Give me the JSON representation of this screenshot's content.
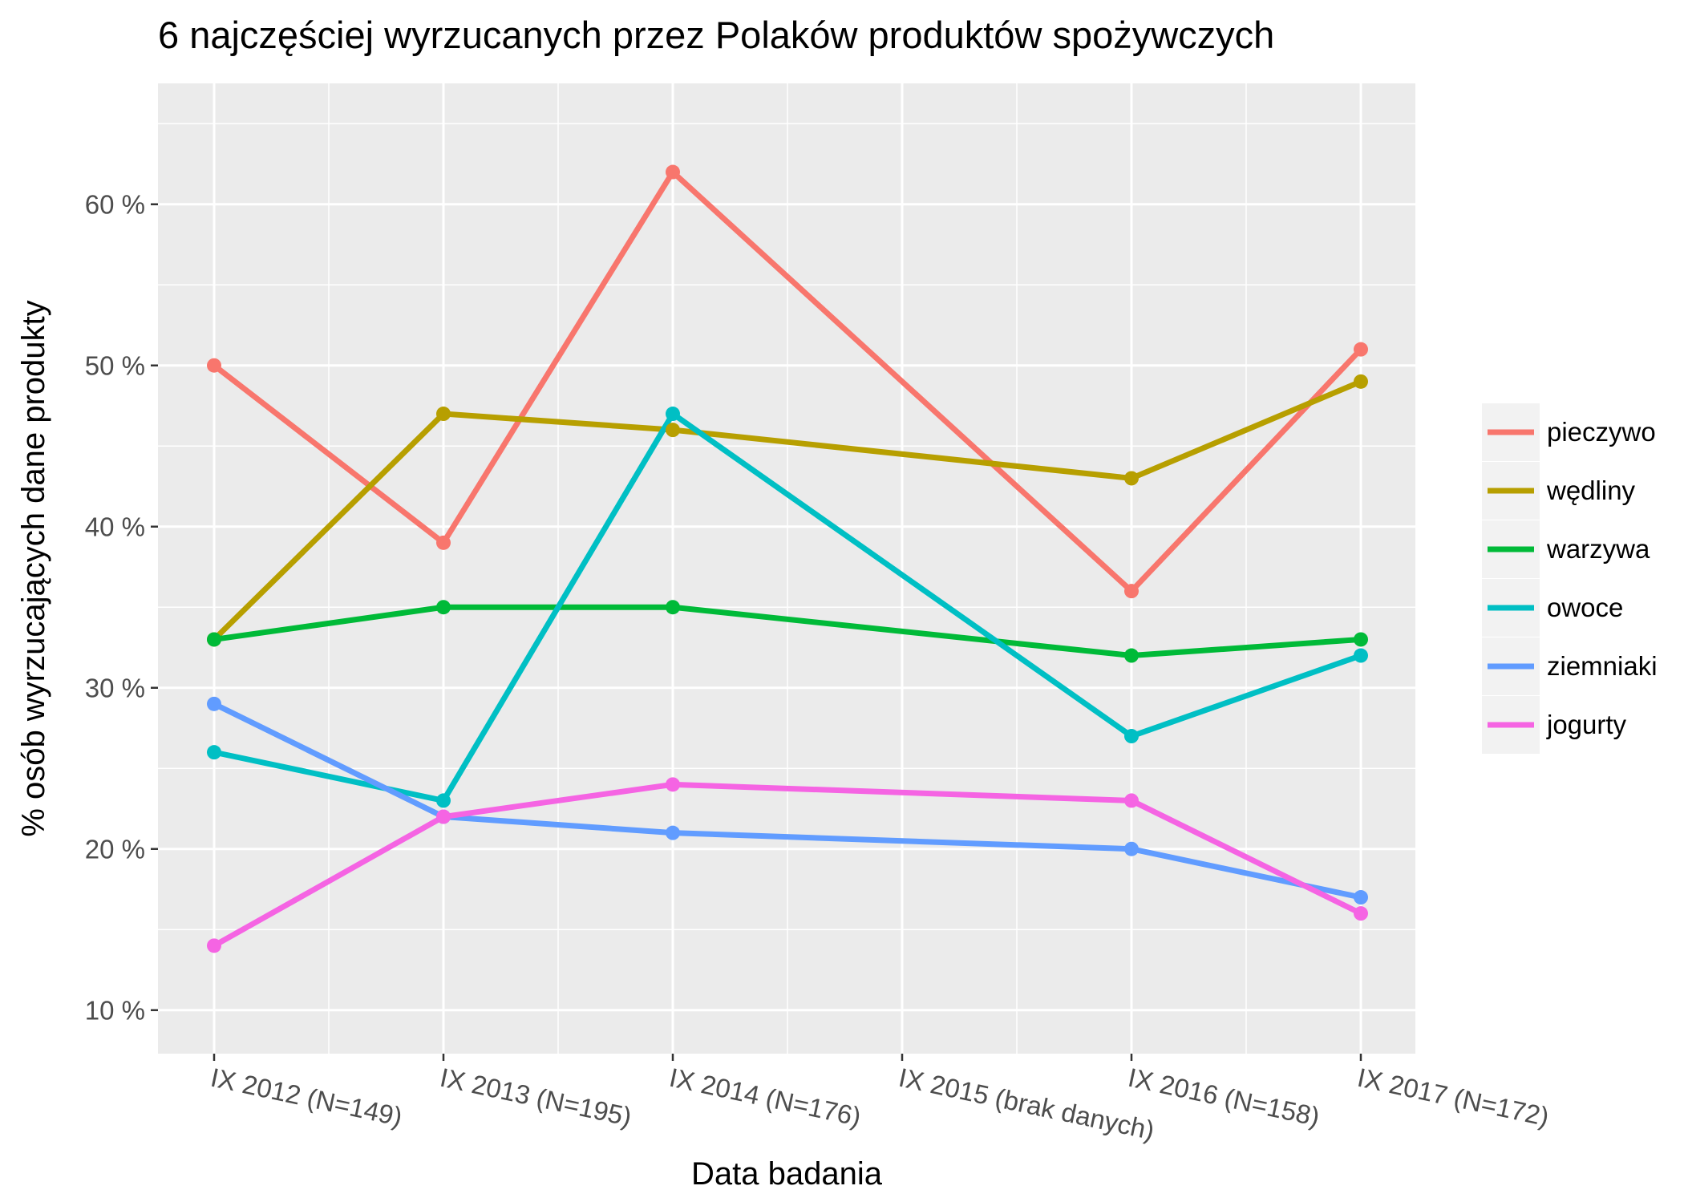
{
  "chart_data": {
    "type": "line",
    "title": "6 najczęściej wyrzucanych przez Polaków produktów spożywczych",
    "xlabel": "Data badania",
    "ylabel": "% osób wyrzucających dane produkty",
    "categories": [
      "IX 2012 (N=149)",
      "IX 2013 (N=195)",
      "IX 2014 (N=176)",
      "IX 2015 (brak danych)",
      "IX 2016 (N=158)",
      "IX 2017 (N=172)"
    ],
    "yticks": [
      10,
      20,
      30,
      40,
      50,
      60
    ],
    "ytick_labels": [
      "10 %",
      "20 %",
      "30 %",
      "40 %",
      "50 %",
      "60 %"
    ],
    "ylim": [
      7.3,
      67.5
    ],
    "grid": true,
    "legend_position": "right",
    "background": "#ebebeb",
    "series": [
      {
        "name": "pieczywo",
        "color": "#f8766d",
        "values": [
          50,
          39,
          62,
          null,
          36,
          51
        ]
      },
      {
        "name": "wędliny",
        "color": "#b79f00",
        "values": [
          33,
          47,
          46,
          null,
          43,
          49
        ]
      },
      {
        "name": "warzywa",
        "color": "#00ba38",
        "values": [
          33,
          35,
          35,
          null,
          32,
          33
        ]
      },
      {
        "name": "owoce",
        "color": "#00bfc4",
        "values": [
          26,
          23,
          47,
          null,
          27,
          32
        ]
      },
      {
        "name": "ziemniaki",
        "color": "#619cff",
        "values": [
          29,
          22,
          21,
          null,
          20,
          17
        ]
      },
      {
        "name": "jogurty",
        "color": "#f564e3",
        "values": [
          14,
          22,
          24,
          null,
          23,
          16
        ]
      }
    ]
  }
}
